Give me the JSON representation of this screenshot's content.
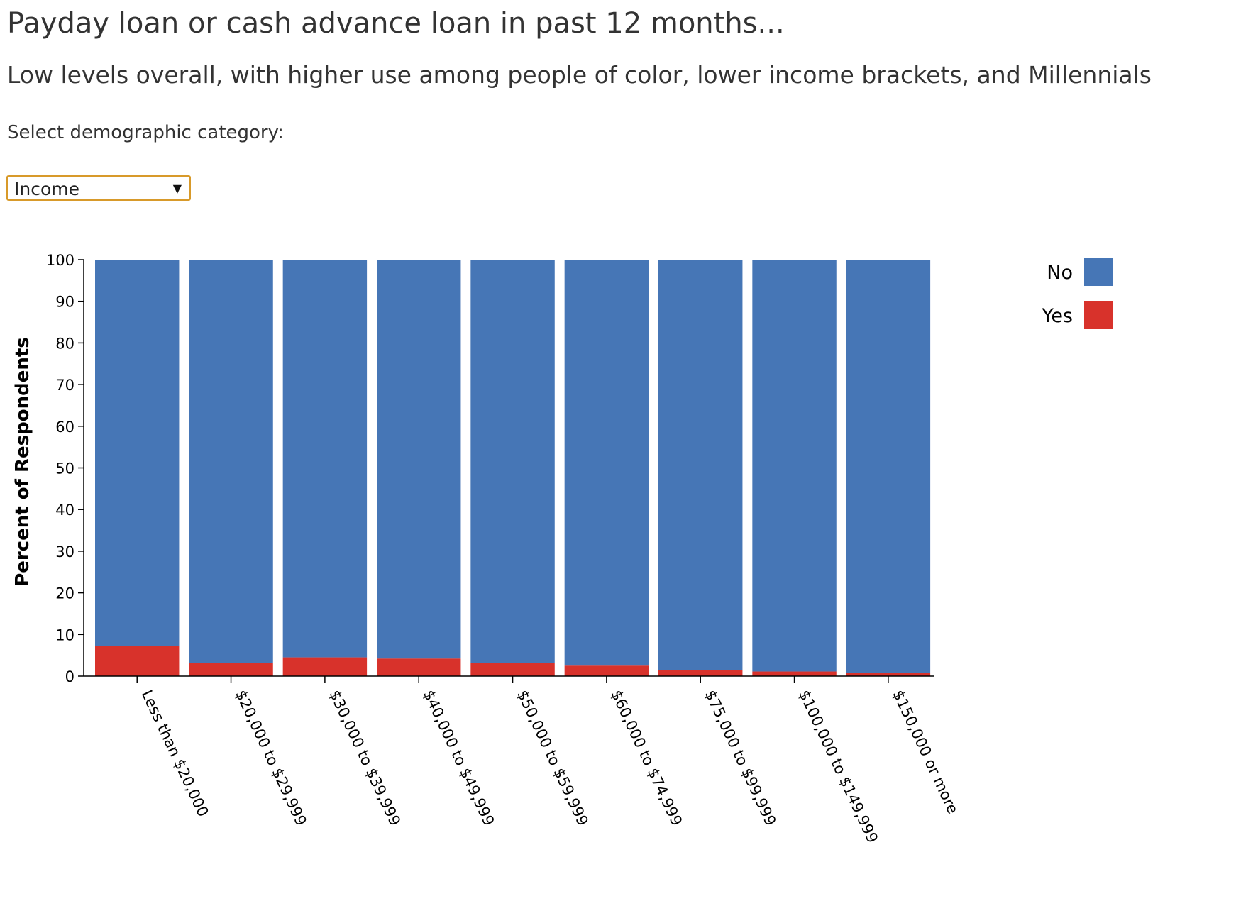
{
  "header": {
    "title": "Payday loan or cash advance loan in past 12 months...",
    "subtitle": "Low levels overall, with higher use among people of color, lower income brackets, and Millennials"
  },
  "selector": {
    "label": "Select demographic category:",
    "value": "Income",
    "caret": "▼"
  },
  "colors": {
    "no": "#4676b6",
    "yes": "#d8322b"
  },
  "chart_data": {
    "type": "bar",
    "stacked": true,
    "ylabel": "Percent of Respondents",
    "xlabel": "",
    "ylim": [
      0,
      100
    ],
    "yticks": [
      0,
      10,
      20,
      30,
      40,
      50,
      60,
      70,
      80,
      90,
      100
    ],
    "categories": [
      "Less than $20,000",
      "$20,000 to $29,999",
      "$30,000 to $39,999",
      "$40,000 to $49,999",
      "$50,000 to $59,999",
      "$60,000 to $74,999",
      "$75,000 to $99,999",
      "$100,000 to $149,999",
      "$150,000 or more"
    ],
    "series": [
      {
        "name": "Yes",
        "color": "#d8322b",
        "values": [
          7.3,
          3.2,
          4.5,
          4.2,
          3.2,
          2.5,
          1.5,
          1.1,
          0.8
        ]
      },
      {
        "name": "No",
        "color": "#4676b6",
        "values": [
          92.7,
          96.8,
          95.5,
          95.8,
          96.8,
          97.5,
          98.5,
          98.9,
          99.2
        ]
      }
    ],
    "legend": {
      "position": "top-right",
      "order": [
        "No",
        "Yes"
      ]
    }
  }
}
